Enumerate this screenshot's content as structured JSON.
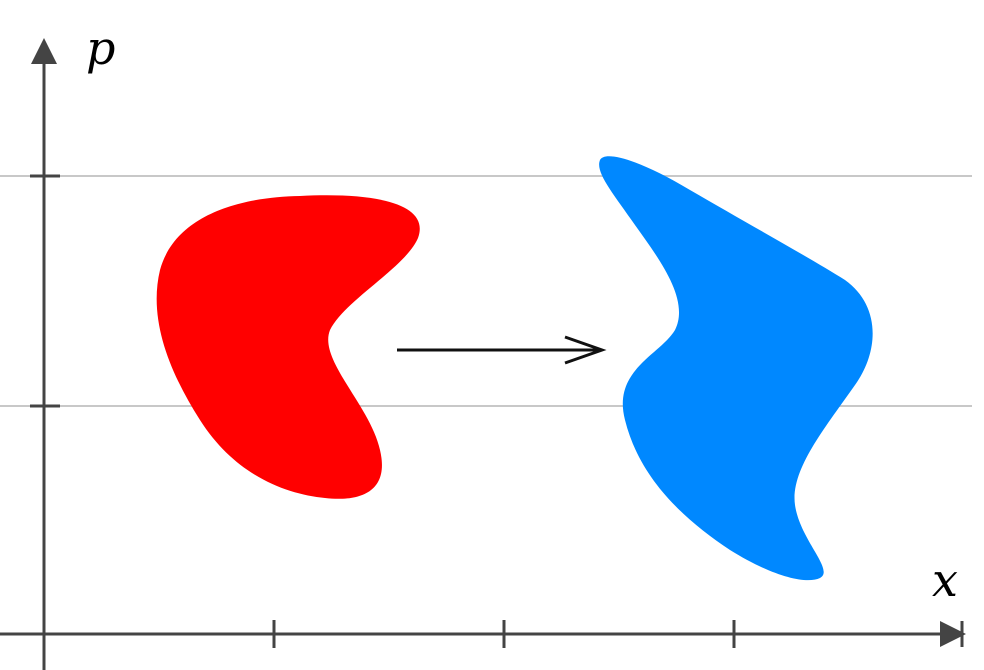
{
  "axes": {
    "x_label": "x",
    "y_label": "p"
  },
  "colors": {
    "axis": "#444444",
    "gridline": "#c8c8c8",
    "initial_region": "#ff0000",
    "evolved_region": "#0088ff",
    "arrow": "#111111"
  },
  "regions": {
    "initial": {
      "name": "initial-phase-region"
    },
    "evolved": {
      "name": "evolved-phase-region"
    }
  }
}
